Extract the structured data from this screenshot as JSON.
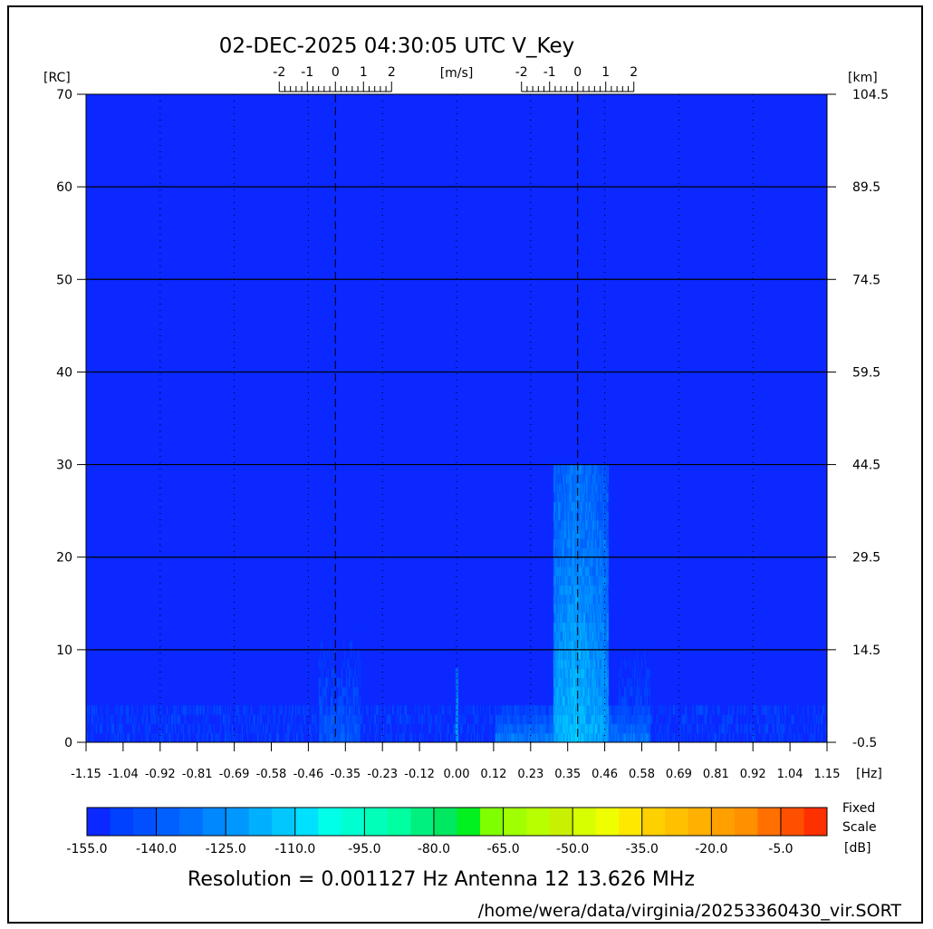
{
  "title": "02-DEC-2025 04:30:05 UTC   V_Key",
  "footer": {
    "info": "Resolution = 0.001127 Hz   Antenna 12   13.626 MHz",
    "path": "/home/wera/data/virginia/20253360430_vir.SORT"
  },
  "chart_data": {
    "type": "heatmap",
    "title": "02-DEC-2025 04:30:05 UTC   V_Key",
    "xlabel": "[Hz]",
    "ylabel_left": "[RC]",
    "ylabel_right": "[km]",
    "top_axis_label": "[m/s]",
    "xlim": [
      -1.15,
      1.15
    ],
    "ylim": [
      0,
      70
    ],
    "x_ticks": [
      "-1.15",
      "-1.04",
      "-0.92",
      "-0.81",
      "-0.69",
      "-0.58",
      "-0.46",
      "-0.35",
      "-0.23",
      "-0.12",
      "0.00",
      "0.12",
      "0.23",
      "0.35",
      "0.46",
      "0.58",
      "0.69",
      "0.81",
      "0.92",
      "1.04",
      "1.15"
    ],
    "y_ticks_left": [
      "0",
      "10",
      "20",
      "30",
      "40",
      "50",
      "60",
      "70"
    ],
    "y_ticks_right": [
      "-0.5",
      "14.5",
      "29.5",
      "44.5",
      "59.5",
      "74.5",
      "89.5",
      "104.5"
    ],
    "top_velocity_ticks": [
      "-2",
      "-1",
      "0",
      "1",
      "2"
    ],
    "bragg_lines_hz": [
      -0.376,
      0.376
    ],
    "grid": true,
    "colorbar": {
      "label_top": "Fixed",
      "label_mid": "Scale",
      "unit": "[dB]",
      "range_db": [
        -160,
        0
      ],
      "step_db": 5,
      "tick_labels": [
        "-155.0",
        "-140.0",
        "-125.0",
        "-110.0",
        "-95.0",
        "-80.0",
        "-65.0",
        "-50.0",
        "-35.0",
        "-20.0",
        "-5.0"
      ],
      "colors": [
        "#0a28ff",
        "#0040ff",
        "#0050ff",
        "#0060ff",
        "#0070ff",
        "#0088ff",
        "#0098ff",
        "#00b0ff",
        "#00c8ff",
        "#00e0ff",
        "#00ffe8",
        "#00ffd0",
        "#00ffb8",
        "#00ffa0",
        "#00f080",
        "#00e860",
        "#00f020",
        "#80ff00",
        "#a0ff00",
        "#b8ff00",
        "#c8f000",
        "#d8ff00",
        "#f0ff00",
        "#ffe800",
        "#ffd000",
        "#ffc000",
        "#ffb000",
        "#ffa000",
        "#ff9000",
        "#ff7000",
        "#ff5000",
        "#ff3000"
      ]
    },
    "background_db": -160,
    "features": [
      {
        "hz": [
          -1.15,
          1.15
        ],
        "rc": [
          0,
          4
        ],
        "peak_db": -148,
        "kind": "floor"
      },
      {
        "hz": [
          -0.43,
          -0.3
        ],
        "rc": [
          0,
          13
        ],
        "peak_db": -138
      },
      {
        "hz": [
          -0.005,
          0.005
        ],
        "rc": [
          0,
          8
        ],
        "peak_db": -118
      },
      {
        "hz": [
          -0.01,
          0.02
        ],
        "rc": [
          26,
          28
        ],
        "peak_db": -150
      },
      {
        "hz": [
          0.3,
          0.47
        ],
        "rc": [
          0,
          30
        ],
        "peak_db": -112,
        "kind": "peaked",
        "center_hz": 0.37
      },
      {
        "hz": [
          0.5,
          0.6
        ],
        "rc": [
          0,
          13
        ],
        "peak_db": -140
      },
      {
        "hz": [
          0.12,
          0.6
        ],
        "rc": [
          0,
          4
        ],
        "peak_db": -130
      }
    ]
  }
}
